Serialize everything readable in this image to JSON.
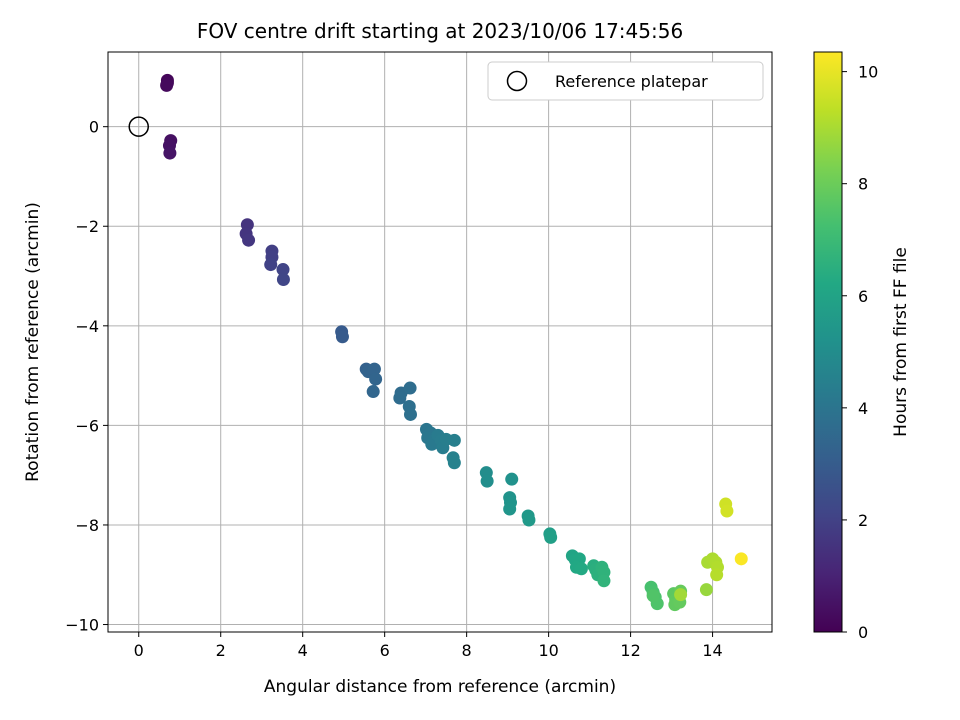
{
  "chart_data": {
    "type": "scatter",
    "title": "FOV centre drift starting at 2023/10/06 17:45:56",
    "xlabel": "Angular distance from reference (arcmin)",
    "ylabel": "Rotation from reference (arcmin)",
    "colorbar_label": "Hours from first FF file",
    "colormap": "viridis",
    "xlim": [
      -0.75,
      15.45
    ],
    "ylim": [
      -10.15,
      1.5
    ],
    "clim": [
      0,
      10.35
    ],
    "x_ticks": [
      0,
      2,
      4,
      6,
      8,
      10,
      12,
      14
    ],
    "y_ticks": [
      0,
      -2,
      -4,
      -6,
      -8,
      -10
    ],
    "y_tick_labels": [
      "0",
      "−2",
      "−4",
      "−6",
      "−8",
      "−10"
    ],
    "colorbar_ticks": [
      0,
      2,
      4,
      6,
      8,
      10
    ],
    "grid": true,
    "legend": {
      "position": "top-right",
      "entries": [
        "Reference platepar"
      ]
    },
    "reference_point": {
      "x": 0,
      "y": 0
    },
    "points": [
      {
        "x": 0.7,
        "y": 0.93,
        "h": 0.15
      },
      {
        "x": 0.7,
        "y": 0.88,
        "h": 0.2
      },
      {
        "x": 0.68,
        "y": 0.83,
        "h": 0.25
      },
      {
        "x": 0.78,
        "y": -0.28,
        "h": 0.45
      },
      {
        "x": 0.75,
        "y": -0.38,
        "h": 0.5
      },
      {
        "x": 0.76,
        "y": -0.53,
        "h": 0.55
      },
      {
        "x": 2.65,
        "y": -1.97,
        "h": 1.55
      },
      {
        "x": 2.62,
        "y": -2.15,
        "h": 1.6
      },
      {
        "x": 2.68,
        "y": -2.28,
        "h": 1.65
      },
      {
        "x": 3.25,
        "y": -2.5,
        "h": 1.9
      },
      {
        "x": 3.25,
        "y": -2.62,
        "h": 1.95
      },
      {
        "x": 3.22,
        "y": -2.77,
        "h": 2.0
      },
      {
        "x": 3.52,
        "y": -2.87,
        "h": 2.1
      },
      {
        "x": 3.53,
        "y": -3.07,
        "h": 2.15
      },
      {
        "x": 4.95,
        "y": -4.12,
        "h": 2.9
      },
      {
        "x": 4.97,
        "y": -4.22,
        "h": 2.95
      },
      {
        "x": 5.55,
        "y": -4.87,
        "h": 3.2
      },
      {
        "x": 5.6,
        "y": -4.92,
        "h": 3.25
      },
      {
        "x": 5.75,
        "y": -4.87,
        "h": 3.3
      },
      {
        "x": 5.78,
        "y": -5.07,
        "h": 3.35
      },
      {
        "x": 5.72,
        "y": -5.32,
        "h": 3.4
      },
      {
        "x": 6.4,
        "y": -5.35,
        "h": 3.6
      },
      {
        "x": 6.37,
        "y": -5.45,
        "h": 3.65
      },
      {
        "x": 6.62,
        "y": -5.25,
        "h": 3.7
      },
      {
        "x": 6.6,
        "y": -5.62,
        "h": 3.75
      },
      {
        "x": 6.63,
        "y": -5.78,
        "h": 3.8
      },
      {
        "x": 7.02,
        "y": -6.08,
        "h": 4.0
      },
      {
        "x": 7.12,
        "y": -6.15,
        "h": 4.05
      },
      {
        "x": 7.05,
        "y": -6.25,
        "h": 4.1
      },
      {
        "x": 7.2,
        "y": -6.3,
        "h": 4.15
      },
      {
        "x": 7.15,
        "y": -6.38,
        "h": 4.2
      },
      {
        "x": 7.3,
        "y": -6.2,
        "h": 4.25
      },
      {
        "x": 7.38,
        "y": -6.3,
        "h": 4.3
      },
      {
        "x": 7.42,
        "y": -6.45,
        "h": 4.35
      },
      {
        "x": 7.5,
        "y": -6.28,
        "h": 4.4
      },
      {
        "x": 7.7,
        "y": -6.3,
        "h": 4.45
      },
      {
        "x": 7.67,
        "y": -6.65,
        "h": 4.5
      },
      {
        "x": 7.7,
        "y": -6.75,
        "h": 4.55
      },
      {
        "x": 8.48,
        "y": -6.95,
        "h": 5.0
      },
      {
        "x": 8.5,
        "y": -7.12,
        "h": 5.05
      },
      {
        "x": 9.1,
        "y": -7.08,
        "h": 5.2
      },
      {
        "x": 9.05,
        "y": -7.45,
        "h": 5.25
      },
      {
        "x": 9.07,
        "y": -7.55,
        "h": 5.3
      },
      {
        "x": 9.05,
        "y": -7.68,
        "h": 5.35
      },
      {
        "x": 9.5,
        "y": -7.82,
        "h": 5.5
      },
      {
        "x": 9.52,
        "y": -7.9,
        "h": 5.55
      },
      {
        "x": 10.03,
        "y": -8.18,
        "h": 5.75
      },
      {
        "x": 10.05,
        "y": -8.25,
        "h": 5.8
      },
      {
        "x": 10.58,
        "y": -8.62,
        "h": 6.05
      },
      {
        "x": 10.65,
        "y": -8.7,
        "h": 6.1
      },
      {
        "x": 10.75,
        "y": -8.68,
        "h": 6.15
      },
      {
        "x": 10.68,
        "y": -8.85,
        "h": 6.2
      },
      {
        "x": 10.8,
        "y": -8.88,
        "h": 6.25
      },
      {
        "x": 11.1,
        "y": -8.82,
        "h": 6.45
      },
      {
        "x": 11.15,
        "y": -8.9,
        "h": 6.5
      },
      {
        "x": 11.2,
        "y": -9.0,
        "h": 6.55
      },
      {
        "x": 11.3,
        "y": -8.85,
        "h": 6.6
      },
      {
        "x": 11.35,
        "y": -8.95,
        "h": 6.65
      },
      {
        "x": 11.35,
        "y": -9.12,
        "h": 6.7
      },
      {
        "x": 12.5,
        "y": -9.25,
        "h": 7.3
      },
      {
        "x": 12.55,
        "y": -9.35,
        "h": 7.35
      },
      {
        "x": 12.6,
        "y": -9.45,
        "h": 7.4
      },
      {
        "x": 12.65,
        "y": -9.58,
        "h": 7.45
      },
      {
        "x": 12.55,
        "y": -9.42,
        "h": 7.5
      },
      {
        "x": 13.05,
        "y": -9.38,
        "h": 7.7
      },
      {
        "x": 13.1,
        "y": -9.5,
        "h": 7.75
      },
      {
        "x": 13.08,
        "y": -9.6,
        "h": 7.8
      },
      {
        "x": 13.2,
        "y": -9.55,
        "h": 7.85
      },
      {
        "x": 13.22,
        "y": -9.33,
        "h": 7.9
      },
      {
        "x": 13.22,
        "y": -9.4,
        "h": 8.9
      },
      {
        "x": 13.85,
        "y": -9.3,
        "h": 8.75
      },
      {
        "x": 13.88,
        "y": -8.75,
        "h": 9.0
      },
      {
        "x": 14.0,
        "y": -8.68,
        "h": 9.05
      },
      {
        "x": 14.08,
        "y": -8.75,
        "h": 9.1
      },
      {
        "x": 14.12,
        "y": -8.85,
        "h": 9.15
      },
      {
        "x": 14.1,
        "y": -9.0,
        "h": 9.2
      },
      {
        "x": 14.32,
        "y": -7.58,
        "h": 9.6
      },
      {
        "x": 14.35,
        "y": -7.72,
        "h": 9.65
      },
      {
        "x": 14.7,
        "y": -8.68,
        "h": 10.3
      }
    ]
  }
}
